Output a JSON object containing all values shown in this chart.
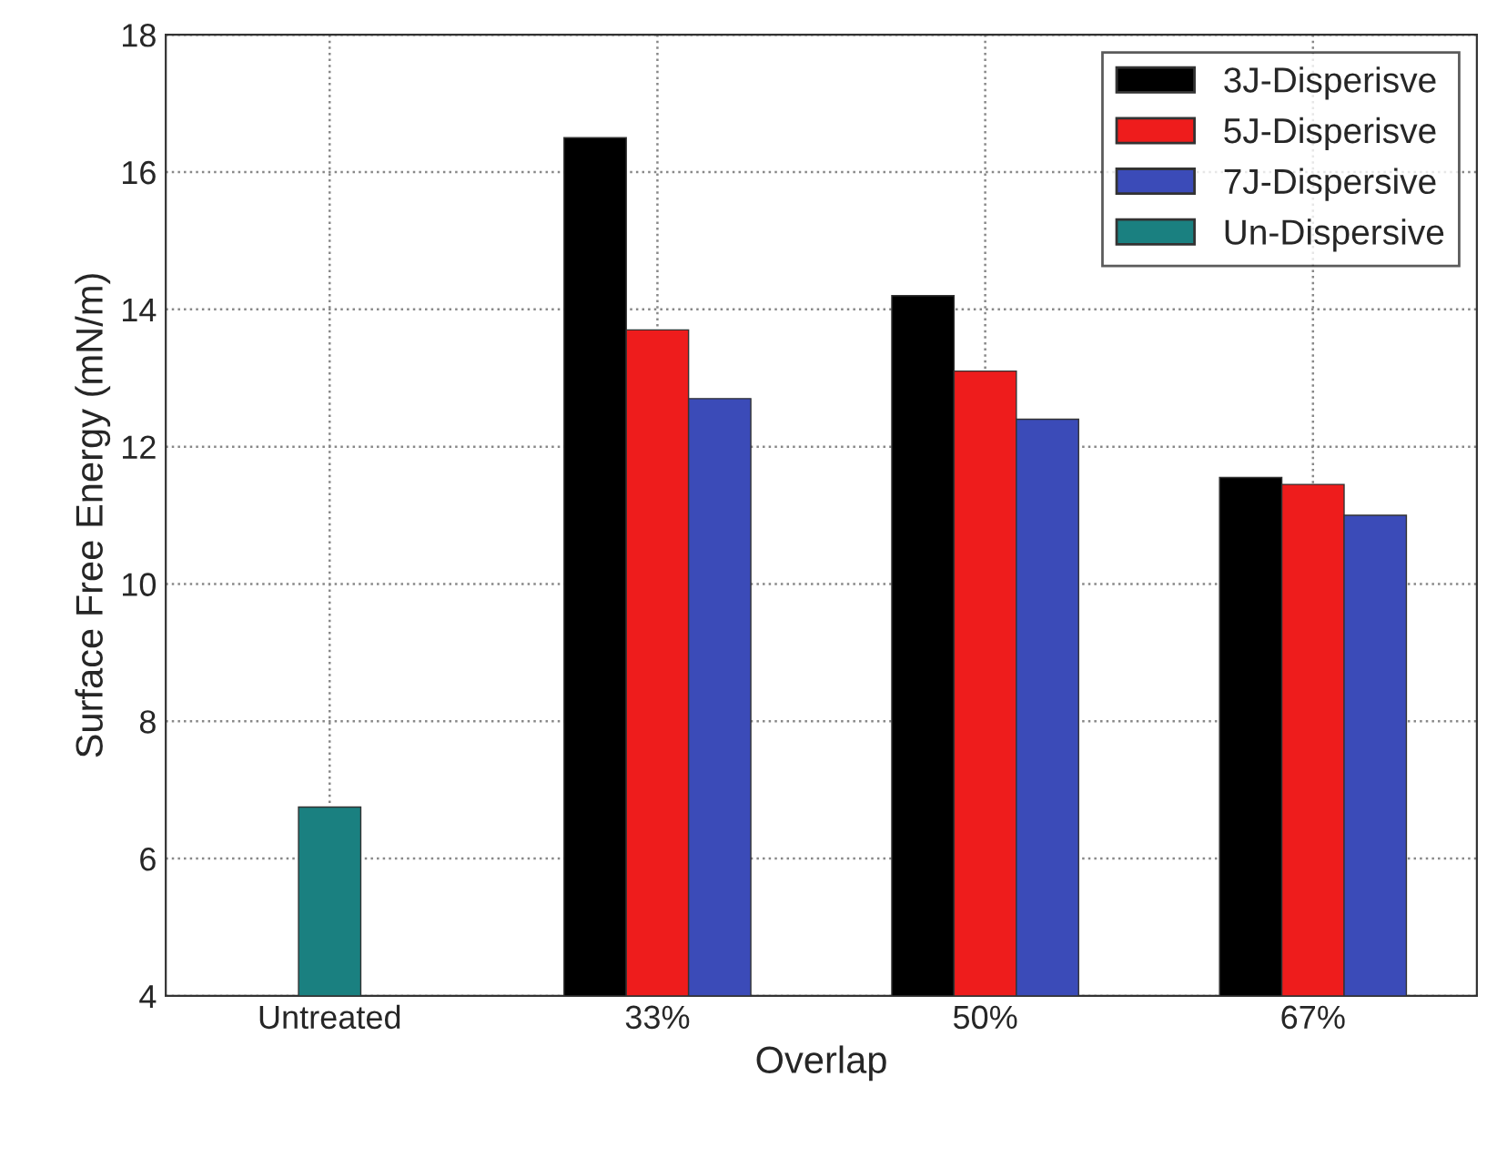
{
  "chart_data": {
    "type": "bar",
    "xlabel": "Overlap",
    "ylabel": "Surface Free Energy (mN/m)",
    "categories": [
      "Untreated",
      "33%",
      "50%",
      "67%"
    ],
    "series": [
      {
        "name": "3J-Disperisve",
        "color": "#000000",
        "values": [
          null,
          16.5,
          14.2,
          11.55
        ]
      },
      {
        "name": "5J-Disperisve",
        "color": "#ee1c1c",
        "values": [
          null,
          13.7,
          13.1,
          11.45
        ]
      },
      {
        "name": "7J-Dispersive",
        "color": "#3b4bb8",
        "values": [
          null,
          12.7,
          12.4,
          11.0
        ]
      },
      {
        "name": "Un-Dispersive",
        "color": "#1a8080",
        "values": [
          6.75,
          null,
          null,
          null
        ]
      }
    ],
    "ylim": [
      4,
      18
    ],
    "yticks": [
      4,
      6,
      8,
      10,
      12,
      14,
      16,
      18
    ],
    "grid": true,
    "legend": "top right"
  }
}
